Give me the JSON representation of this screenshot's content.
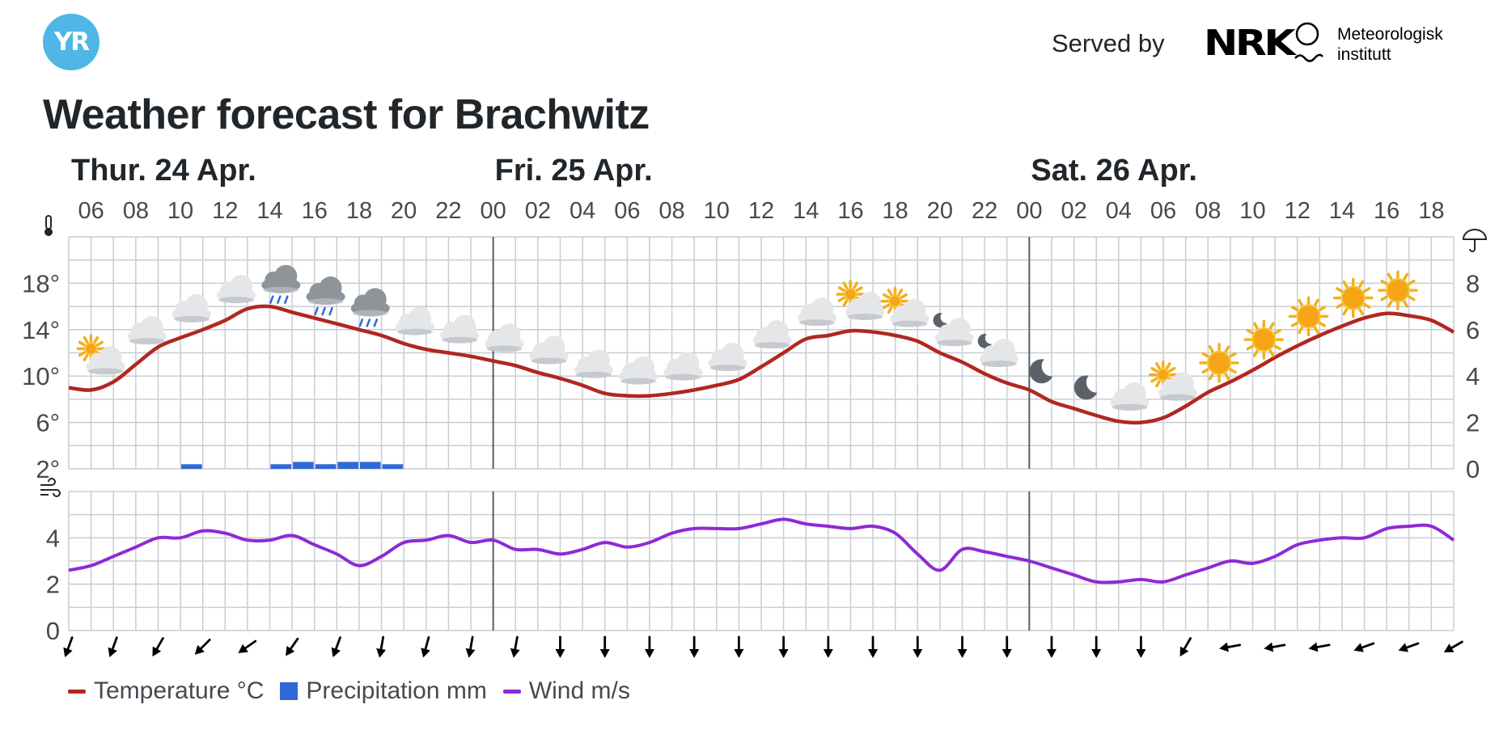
{
  "header": {
    "logo_text": "YR",
    "served_by": "Served by",
    "nrk_text": "NRK",
    "met_line1": "Meteorologisk",
    "met_line2": "institutt"
  },
  "title": "Weather forecast for Brachwitz",
  "chart_data": {
    "type": "line",
    "title": "Weather forecast for Brachwitz",
    "days": [
      {
        "label": "Thur. 24 Apr.",
        "start_hour": 5
      },
      {
        "label": "Fri. 25 Apr.",
        "start_hour": 24
      },
      {
        "label": "Sat. 26 Apr.",
        "start_hour": 48
      }
    ],
    "hour_range": [
      5,
      67
    ],
    "x_tick_labels": [
      "06",
      "08",
      "10",
      "12",
      "14",
      "16",
      "18",
      "20",
      "22",
      "00",
      "02",
      "04",
      "06",
      "08",
      "10",
      "12",
      "14",
      "16",
      "18",
      "20",
      "22",
      "00",
      "02",
      "04",
      "06",
      "08",
      "10",
      "12",
      "14",
      "16",
      "18"
    ],
    "x_tick_hours": [
      6,
      8,
      10,
      12,
      14,
      16,
      18,
      20,
      22,
      24,
      26,
      28,
      30,
      32,
      34,
      36,
      38,
      40,
      42,
      44,
      46,
      48,
      50,
      52,
      54,
      56,
      58,
      60,
      62,
      64,
      66
    ],
    "temperature": {
      "name": "Temperature °C",
      "unit": "°C",
      "color": "#b1271f",
      "ylim": [
        2,
        22
      ],
      "yticks": [
        "2°",
        "6°",
        "10°",
        "14°",
        "18°"
      ],
      "ytick_values": [
        2,
        6,
        10,
        14,
        18
      ],
      "x": [
        5,
        6,
        7,
        8,
        9,
        10,
        11,
        12,
        13,
        14,
        15,
        16,
        17,
        18,
        19,
        20,
        21,
        22,
        23,
        24,
        25,
        26,
        27,
        28,
        29,
        30,
        31,
        32,
        33,
        34,
        35,
        36,
        37,
        38,
        39,
        40,
        41,
        42,
        43,
        44,
        45,
        46,
        47,
        48,
        49,
        50,
        51,
        52,
        53,
        54,
        55,
        56,
        57,
        58,
        59,
        60,
        61,
        62,
        63,
        64,
        65,
        66,
        67
      ],
      "values": [
        9.0,
        8.8,
        9.5,
        11.0,
        12.5,
        13.3,
        14.0,
        14.8,
        15.8,
        16.0,
        15.5,
        15.0,
        14.5,
        14.0,
        13.5,
        12.8,
        12.3,
        12.0,
        11.7,
        11.3,
        10.9,
        10.3,
        9.8,
        9.2,
        8.5,
        8.3,
        8.3,
        8.5,
        8.8,
        9.2,
        9.7,
        10.8,
        12.0,
        13.2,
        13.5,
        13.9,
        13.8,
        13.5,
        13.0,
        12.0,
        11.2,
        10.2,
        9.4,
        8.8,
        7.8,
        7.2,
        6.6,
        6.1,
        6.0,
        6.4,
        7.4,
        8.6,
        9.5,
        10.5,
        11.6,
        12.6,
        13.5,
        14.3,
        15.0,
        15.4,
        15.2,
        14.8,
        13.8
      ]
    },
    "precipitation": {
      "name": "Precipitation mm",
      "unit": "mm",
      "color": "#3068d6",
      "ylim": [
        0,
        10
      ],
      "yticks": [
        "0",
        "2",
        "4",
        "6",
        "8"
      ],
      "ytick_values": [
        0,
        2,
        4,
        6,
        8
      ],
      "hours": [
        10,
        14,
        15,
        16,
        17,
        18,
        19
      ],
      "values": [
        0.2,
        0.2,
        0.3,
        0.2,
        0.3,
        0.3,
        0.2
      ]
    },
    "wind": {
      "name": "Wind m/s",
      "unit": "m/s",
      "color": "#8e2ad6",
      "ylim": [
        0,
        6
      ],
      "yticks": [
        "0",
        "2",
        "4"
      ],
      "ytick_values": [
        0,
        2,
        4
      ],
      "x": [
        5,
        6,
        7,
        8,
        9,
        10,
        11,
        12,
        13,
        14,
        15,
        16,
        17,
        18,
        19,
        20,
        21,
        22,
        23,
        24,
        25,
        26,
        27,
        28,
        29,
        30,
        31,
        32,
        33,
        34,
        35,
        36,
        37,
        38,
        39,
        40,
        41,
        42,
        43,
        44,
        45,
        46,
        47,
        48,
        49,
        50,
        51,
        52,
        53,
        54,
        55,
        56,
        57,
        58,
        59,
        60,
        61,
        62,
        63,
        64,
        65,
        66,
        67
      ],
      "values": [
        2.6,
        2.8,
        3.2,
        3.6,
        4.0,
        4.0,
        4.3,
        4.2,
        3.9,
        3.9,
        4.1,
        3.7,
        3.3,
        2.8,
        3.2,
        3.8,
        3.9,
        4.1,
        3.8,
        3.9,
        3.5,
        3.5,
        3.3,
        3.5,
        3.8,
        3.6,
        3.8,
        4.2,
        4.4,
        4.4,
        4.4,
        4.6,
        4.8,
        4.6,
        4.5,
        4.4,
        4.5,
        4.2,
        3.3,
        2.6,
        3.5,
        3.4,
        3.2,
        3.0,
        2.7,
        2.4,
        2.1,
        2.1,
        2.2,
        2.1,
        2.4,
        2.7,
        3.0,
        2.9,
        3.2,
        3.7,
        3.9,
        4.0,
        4.0,
        4.4,
        4.5,
        4.5,
        3.9
      ]
    },
    "symbols": [
      {
        "hour": 6,
        "type": "partly-cloudy-day-icon"
      },
      {
        "hour": 8,
        "type": "cloudy-icon"
      },
      {
        "hour": 10,
        "type": "cloudy-icon"
      },
      {
        "hour": 12,
        "type": "cloudy-icon"
      },
      {
        "hour": 14,
        "type": "light-rain-icon"
      },
      {
        "hour": 16,
        "type": "light-rain-icon"
      },
      {
        "hour": 18,
        "type": "light-rain-icon"
      },
      {
        "hour": 20,
        "type": "cloudy-icon"
      },
      {
        "hour": 22,
        "type": "cloudy-icon"
      },
      {
        "hour": 24,
        "type": "cloudy-icon"
      },
      {
        "hour": 26,
        "type": "cloudy-icon"
      },
      {
        "hour": 28,
        "type": "cloudy-icon"
      },
      {
        "hour": 30,
        "type": "cloudy-icon"
      },
      {
        "hour": 32,
        "type": "cloudy-icon"
      },
      {
        "hour": 34,
        "type": "cloudy-icon"
      },
      {
        "hour": 36,
        "type": "cloudy-icon"
      },
      {
        "hour": 38,
        "type": "cloudy-icon"
      },
      {
        "hour": 40,
        "type": "partly-cloudy-day-icon"
      },
      {
        "hour": 42,
        "type": "partly-cloudy-day-icon"
      },
      {
        "hour": 44,
        "type": "partly-cloudy-night-icon"
      },
      {
        "hour": 46,
        "type": "partly-cloudy-night-icon"
      },
      {
        "hour": 48,
        "type": "clear-night-icon"
      },
      {
        "hour": 50,
        "type": "clear-night-icon"
      },
      {
        "hour": 52,
        "type": "cloudy-icon"
      },
      {
        "hour": 54,
        "type": "partly-cloudy-day-icon"
      },
      {
        "hour": 56,
        "type": "clear-sky-icon"
      },
      {
        "hour": 58,
        "type": "clear-sky-icon"
      },
      {
        "hour": 60,
        "type": "clear-sky-icon"
      },
      {
        "hour": 62,
        "type": "clear-sky-icon"
      },
      {
        "hour": 64,
        "type": "clear-sky-icon"
      }
    ],
    "wind_arrows": {
      "hours": [
        5,
        7,
        9,
        11,
        13,
        15,
        17,
        19,
        21,
        23,
        25,
        27,
        29,
        31,
        33,
        35,
        37,
        39,
        41,
        43,
        45,
        47,
        49,
        51,
        53,
        55,
        57,
        59,
        61,
        63,
        65,
        67
      ],
      "toward_deg": [
        200,
        200,
        210,
        225,
        235,
        215,
        200,
        190,
        195,
        190,
        190,
        180,
        180,
        180,
        180,
        180,
        180,
        180,
        180,
        180,
        180,
        180,
        180,
        180,
        180,
        210,
        260,
        260,
        260,
        250,
        250,
        240
      ]
    },
    "legend": [
      "Temperature °C",
      "Precipitation mm",
      "Wind m/s"
    ],
    "grid": true,
    "legend_position": "bottom-left"
  }
}
